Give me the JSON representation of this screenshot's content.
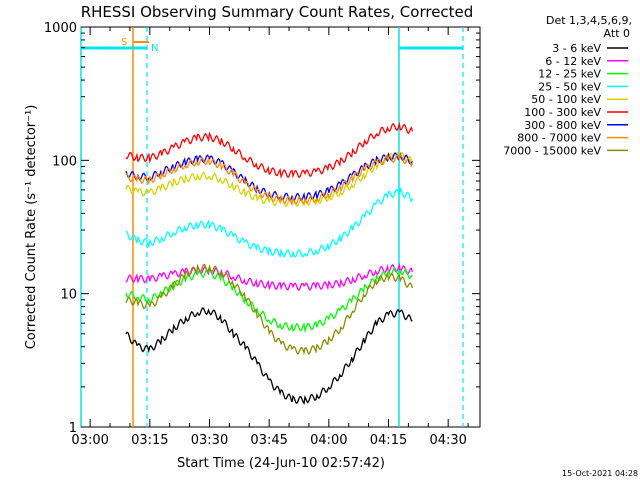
{
  "chart_data": {
    "type": "line",
    "title": "RHESSI Observing Summary Count Rates, Corrected",
    "xlabel": "Start Time (24-Jun-10 02:57:42)",
    "ylabel": "Corrected Count Rate (s⁻¹ detector⁻¹)",
    "yscale": "log",
    "ylim": [
      1,
      1000
    ],
    "xlim": [
      "02:57:42",
      "04:38:00"
    ],
    "x_ticks": [
      "03:00",
      "03:15",
      "03:30",
      "03:45",
      "04:00",
      "04:15",
      "04:30"
    ],
    "y_ticks": [
      "1",
      "10",
      "100",
      "1000"
    ],
    "legend_header": [
      "Det 1,3,4,5,6,9,",
      "Att 0"
    ],
    "legend_placement": "right",
    "footer_date": "15-Oct-2021 04:28",
    "markers": [
      {
        "label": "S",
        "color": "#ff8c00"
      },
      {
        "label": "N",
        "color": "#00e5ee"
      }
    ],
    "x_samples": [
      "03:09",
      "03:12",
      "03:15",
      "03:18",
      "03:21",
      "03:24",
      "03:27",
      "03:30",
      "03:33",
      "03:36",
      "03:39",
      "03:42",
      "03:45",
      "03:48",
      "03:51",
      "03:54",
      "03:57",
      "04:00",
      "04:03",
      "04:06",
      "04:09",
      "04:12",
      "04:15",
      "04:18",
      "04:21"
    ],
    "series": [
      {
        "name": "3 - 6 keV",
        "color": "#000000",
        "values": [
          5.0,
          4.0,
          3.8,
          4.5,
          5.5,
          6.5,
          7.3,
          7.5,
          6.5,
          5.0,
          4.0,
          3.0,
          2.2,
          1.8,
          1.6,
          1.6,
          1.7,
          2.0,
          2.5,
          3.3,
          4.5,
          6.0,
          7.0,
          7.2,
          6.3
        ]
      },
      {
        "name": "6 - 12 keV",
        "color": "#ff00ff",
        "values": [
          13.0,
          13.0,
          12.8,
          13.5,
          14.0,
          14.6,
          15.0,
          15.0,
          14.5,
          13.5,
          12.5,
          12.0,
          11.6,
          11.4,
          11.3,
          11.3,
          11.4,
          11.6,
          12.0,
          12.8,
          13.8,
          14.8,
          15.5,
          15.5,
          14.5
        ]
      },
      {
        "name": "12 - 25 keV",
        "color": "#00ff00",
        "values": [
          10.0,
          9.5,
          9.0,
          10.2,
          11.5,
          13.0,
          14.0,
          14.3,
          13.0,
          11.0,
          9.0,
          7.5,
          6.4,
          5.8,
          5.6,
          5.6,
          5.8,
          6.5,
          7.5,
          9.0,
          11.0,
          13.0,
          14.5,
          15.0,
          13.5
        ]
      },
      {
        "name": "25 - 50 keV",
        "color": "#00ffff",
        "values": [
          28.0,
          25.0,
          24.0,
          26.0,
          29.0,
          31.5,
          33.0,
          33.0,
          30.5,
          27.0,
          24.0,
          22.0,
          20.8,
          20.2,
          20.0,
          20.2,
          21.0,
          23.0,
          26.0,
          31.0,
          38.0,
          47.0,
          55.0,
          58.0,
          52.0
        ]
      },
      {
        "name": "50 - 100 keV",
        "color": "#d4d400",
        "values": [
          62.0,
          58.0,
          57.0,
          62.0,
          68.0,
          73.0,
          76.0,
          77.0,
          72.0,
          64.0,
          57.0,
          52.0,
          49.0,
          48.0,
          48.0,
          48.5,
          50.0,
          53.0,
          58.0,
          66.0,
          78.0,
          92.0,
          105.0,
          110.0,
          98.0
        ]
      },
      {
        "name": "100 - 300 keV",
        "color": "#ff0000",
        "values": [
          110.0,
          105.0,
          104.0,
          112.0,
          125.0,
          138.0,
          148.0,
          150.0,
          140.0,
          122.0,
          105.0,
          92.0,
          84.0,
          80.0,
          79.0,
          79.5,
          82.0,
          88.0,
          98.0,
          115.0,
          138.0,
          160.0,
          176.0,
          180.0,
          165.0
        ]
      },
      {
        "name": "300 - 800 keV",
        "color": "#0000ff",
        "values": [
          80.0,
          76.0,
          75.0,
          82.0,
          90.0,
          97.0,
          102.0,
          103.0,
          95.0,
          82.0,
          70.0,
          61.0,
          56.0,
          54.0,
          53.0,
          53.5,
          55.0,
          59.0,
          66.0,
          77.0,
          89.0,
          100.0,
          106.0,
          108.0,
          98.0
        ]
      },
      {
        "name": "800 - 7000 keV",
        "color": "#ff8c00",
        "values": [
          75.0,
          72.0,
          71.0,
          78.0,
          86.0,
          93.0,
          98.0,
          99.0,
          91.0,
          79.0,
          67.0,
          58.0,
          53.0,
          51.0,
          50.0,
          50.5,
          52.0,
          56.0,
          63.0,
          74.0,
          86.0,
          96.0,
          102.0,
          104.0,
          95.0
        ]
      },
      {
        "name": "7000 - 15000 keV",
        "color": "#8b8b00",
        "values": [
          9.0,
          8.5,
          8.0,
          9.5,
          11.5,
          14.0,
          15.5,
          15.8,
          14.5,
          12.0,
          9.5,
          7.0,
          5.2,
          4.2,
          3.8,
          3.7,
          3.9,
          4.5,
          5.5,
          7.5,
          10.0,
          12.5,
          13.5,
          13.0,
          11.0
        ]
      }
    ]
  }
}
